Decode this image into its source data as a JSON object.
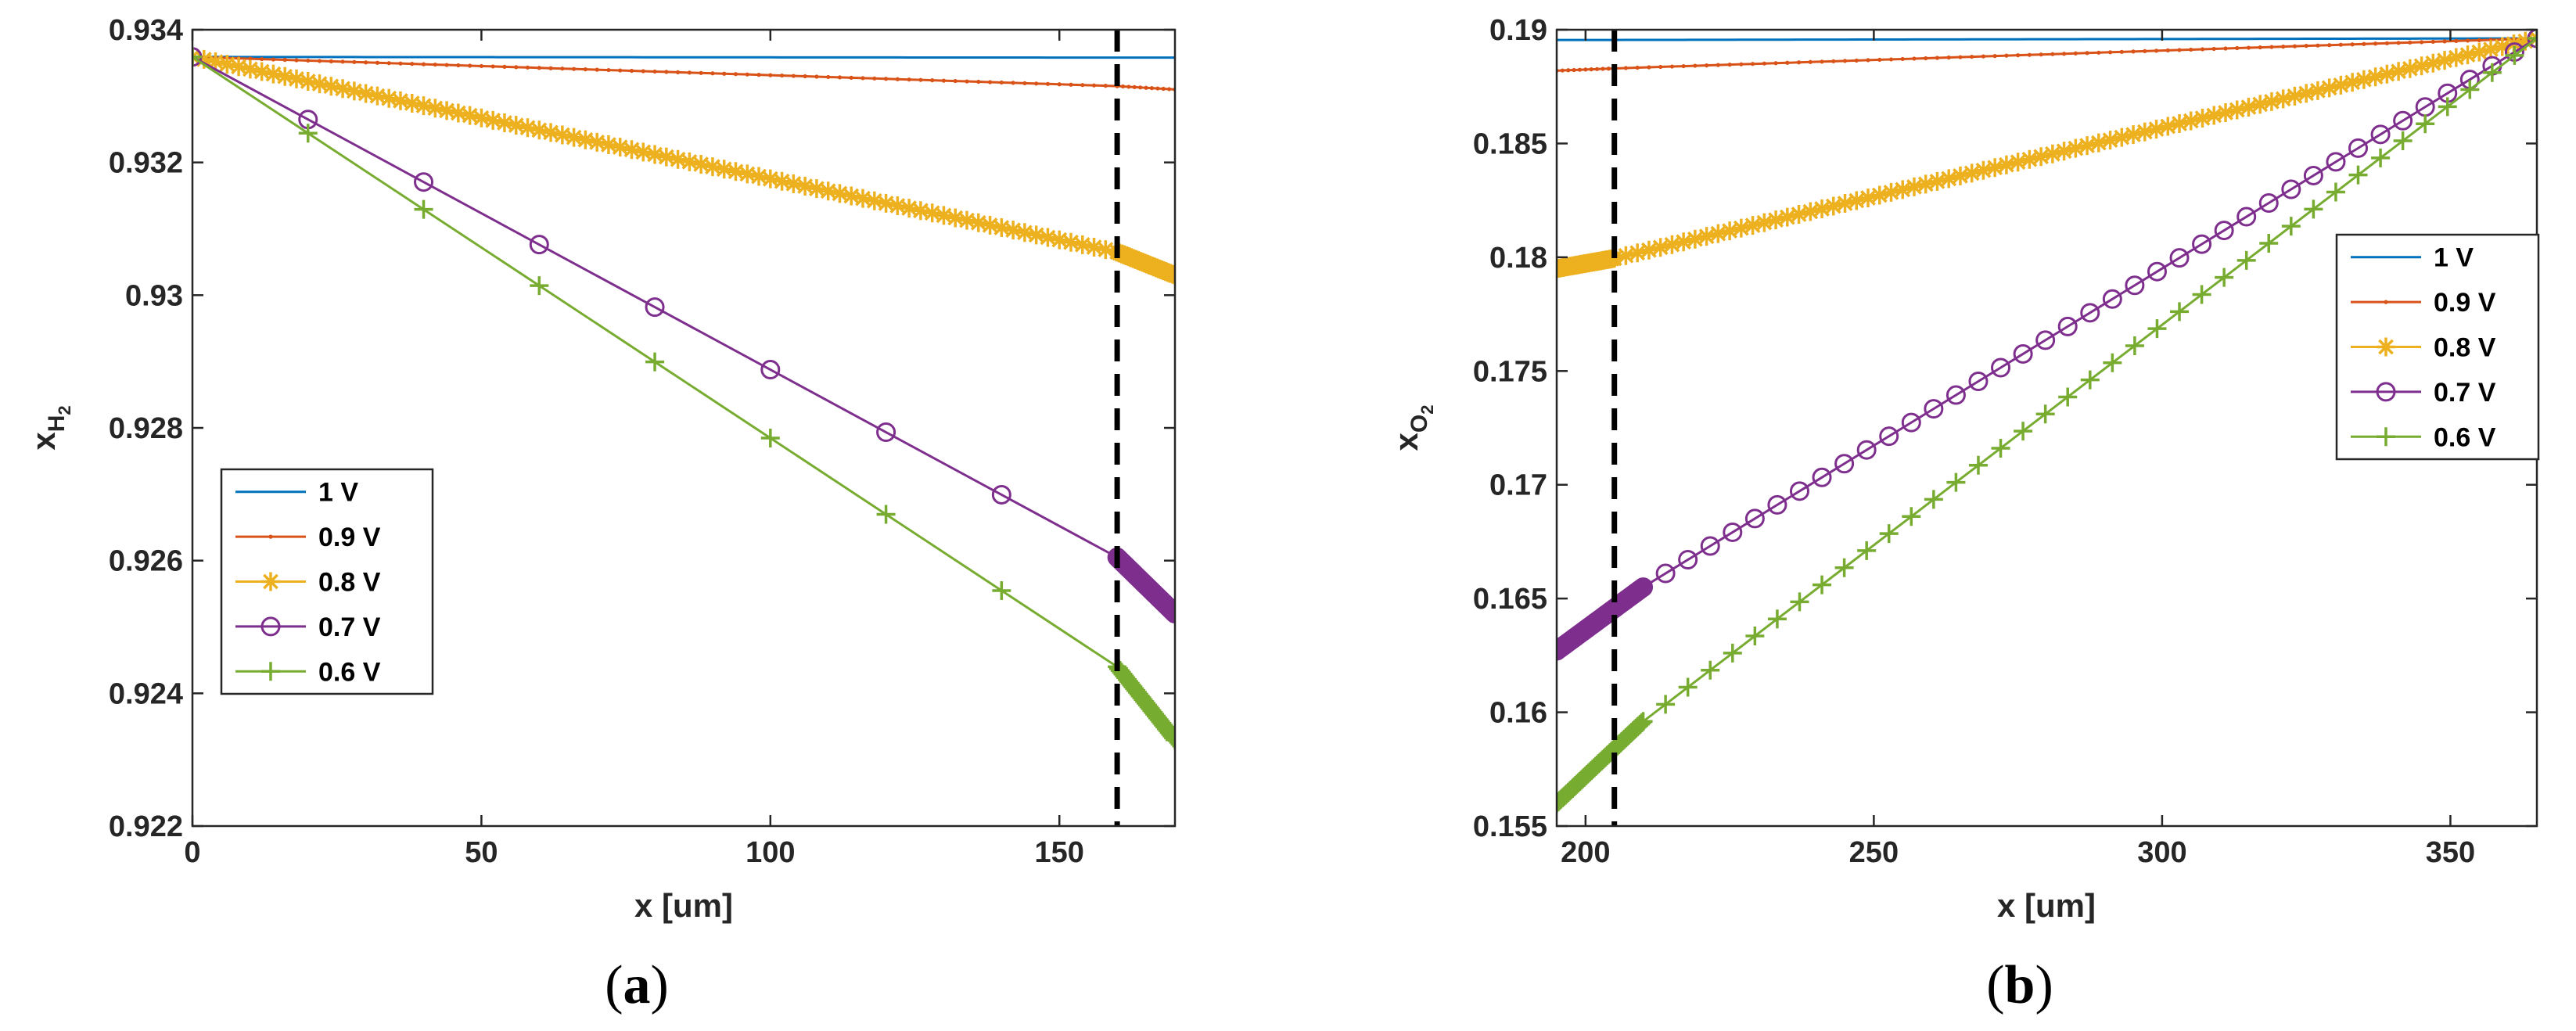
{
  "colors": {
    "s1": "#0072BD",
    "s2": "#D95319",
    "s3": "#EDB120",
    "s4": "#7E2F8E",
    "s5": "#77AC30",
    "axis": "#262626",
    "dashed": "#000000"
  },
  "chart_data": [
    {
      "type": "line",
      "panel": "a",
      "caption": "(a)",
      "caption_letter": "a",
      "xlabel": "x [um]",
      "ylabel_main": "x",
      "ylabel_sub": "H",
      "ylabel_subsub": "2",
      "xlim": [
        0,
        170
      ],
      "ylim": [
        0.922,
        0.934
      ],
      "xticks": [
        0,
        50,
        100,
        150
      ],
      "xtick_labels": [
        "0",
        "50",
        "100",
        "150"
      ],
      "yticks": [
        0.922,
        0.924,
        0.926,
        0.928,
        0.93,
        0.932,
        0.934
      ],
      "ytick_labels": [
        "0.922",
        "0.924",
        "0.926",
        "0.928",
        "0.93",
        "0.932",
        "0.934"
      ],
      "vline_x": 160,
      "legend_placement": "left-middle",
      "series": [
        {
          "name": "1 V",
          "marker": "none",
          "x0": 0,
          "x1": 160,
          "x2": 170,
          "y0": 0.93359,
          "y1": 0.93358,
          "y2": 0.93358,
          "step1": 2,
          "step2": 2
        },
        {
          "name": "0.9 V",
          "marker": "dot",
          "x0": 0,
          "x1": 160,
          "x2": 170,
          "y0": 0.93359,
          "y1": 0.93315,
          "y2": 0.9331,
          "step1": 2,
          "step2": 1
        },
        {
          "name": "0.8 V",
          "marker": "asterisk",
          "x0": 0,
          "x1": 160,
          "x2": 170,
          "y0": 0.93359,
          "y1": 0.93065,
          "y2": 0.9303,
          "step1": 2,
          "step2": 0.4
        },
        {
          "name": "0.7 V",
          "marker": "circle",
          "x0": 0,
          "x1": 160,
          "x2": 170,
          "y0": 0.93359,
          "y1": 0.92605,
          "y2": 0.9252,
          "step1": 20,
          "step2": 0.25
        },
        {
          "name": "0.6 V",
          "marker": "plus",
          "x0": 0,
          "x1": 160,
          "x2": 170,
          "y0": 0.93359,
          "y1": 0.9244,
          "y2": 0.9233,
          "step1": 20,
          "step2": 0.25
        }
      ]
    },
    {
      "type": "line",
      "panel": "b",
      "caption": "(b)",
      "caption_letter": "b",
      "xlabel": "x [um]",
      "ylabel_main": "x",
      "ylabel_sub": "O",
      "ylabel_subsub": "2",
      "xlim": [
        195,
        365
      ],
      "ylim": [
        0.155,
        0.19
      ],
      "xticks": [
        200,
        250,
        300,
        350
      ],
      "xtick_labels": [
        "200",
        "250",
        "300",
        "350"
      ],
      "yticks": [
        0.155,
        0.16,
        0.165,
        0.17,
        0.175,
        0.18,
        0.185,
        0.19
      ],
      "ytick_labels": [
        "0.155",
        "0.16",
        "0.165",
        "0.17",
        "0.175",
        "0.18",
        "0.185",
        "0.19"
      ],
      "vline_x": 205,
      "legend_placement": "right-middle",
      "series": [
        {
          "name": "1 V",
          "marker": "none",
          "x0": 195,
          "x1": 205,
          "x2": 365,
          "y0": 0.18955,
          "y1": 0.18955,
          "y2": 0.18962,
          "step1": 2,
          "step2": 2
        },
        {
          "name": "0.9 V",
          "marker": "dot",
          "x0": 195,
          "x1": 205,
          "x2": 365,
          "y0": 0.1882,
          "y1": 0.1883,
          "y2": 0.18962,
          "step1": 1,
          "step2": 2
        },
        {
          "name": "0.8 V",
          "marker": "asterisk",
          "x0": 195,
          "x1": 205,
          "x2": 365,
          "y0": 0.1795,
          "y1": 0.17995,
          "y2": 0.18962,
          "step1": 0.4,
          "step2": 2
        },
        {
          "name": "0.7 V",
          "marker": "circle",
          "x0": 195,
          "x1": 210,
          "x2": 365,
          "y0": 0.1627,
          "y1": 0.1655,
          "y2": 0.18962,
          "step1": 0.25,
          "step2": 3.875
        },
        {
          "name": "0.6 V",
          "marker": "plus",
          "x0": 195,
          "x1": 210,
          "x2": 365,
          "y0": 0.156,
          "y1": 0.1596,
          "y2": 0.18962,
          "step1": 0.25,
          "step2": 3.875
        }
      ]
    }
  ]
}
